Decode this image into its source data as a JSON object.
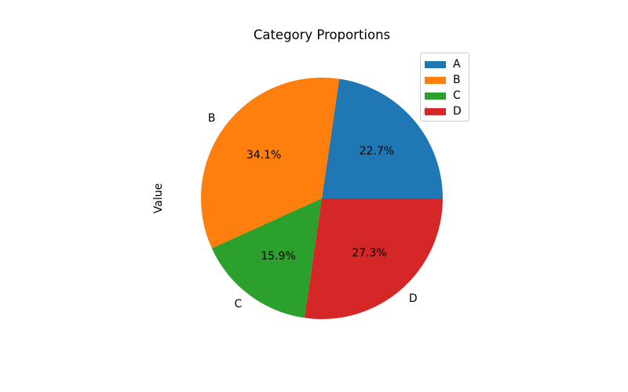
{
  "chart_data": {
    "type": "pie",
    "title": "Category Proportions",
    "ylabel": "Value",
    "categories": [
      "A",
      "B",
      "C",
      "D"
    ],
    "values": [
      22.7,
      34.1,
      15.9,
      27.3
    ],
    "percent_labels": [
      "22.7%",
      "34.1%",
      "15.9%",
      "27.3%"
    ],
    "colors": [
      "#1f77b4",
      "#ff7f0e",
      "#2ca02c",
      "#d62728"
    ],
    "start_angle_deg": 0,
    "direction": "counterclockwise",
    "label_distance": 1.1,
    "pct_distance": 0.6,
    "background": "#ffffff",
    "legend": {
      "position": "upper right",
      "entries": [
        "A",
        "B",
        "C",
        "D"
      ]
    }
  }
}
